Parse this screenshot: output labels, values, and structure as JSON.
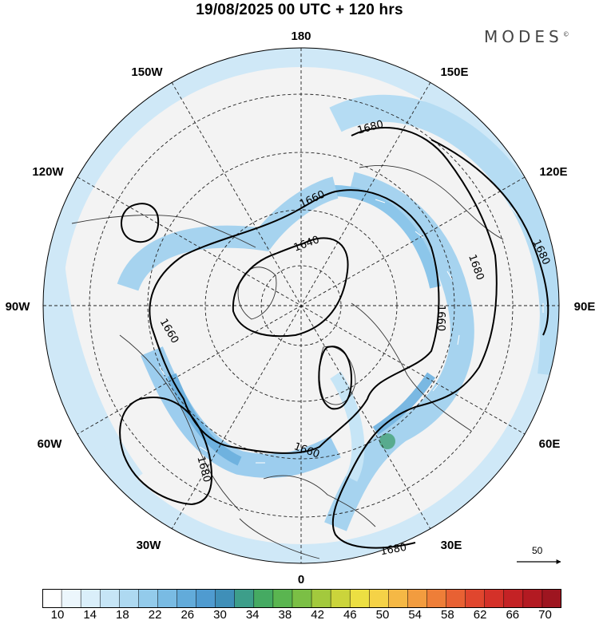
{
  "title": "19/08/2025  00 UTC  + 120 hrs",
  "brand": "MODES",
  "brand_mark": "©",
  "longitude_labels": {
    "n180": "180",
    "w150": "150W",
    "e150": "150E",
    "w120": "120W",
    "e120": "120E",
    "w90": "90W",
    "e90": "90E",
    "w60": "60W",
    "e60": "60E",
    "w30": "30W",
    "e30": "30E",
    "s0": "0"
  },
  "contour_labels": {
    "c1640": "1640",
    "c1660_a": "1660",
    "c1660_b": "1660",
    "c1660_c": "1660",
    "c1660_d": "1660",
    "c1680_a": "1680",
    "c1680_b": "1680",
    "c1680_c": "1680",
    "c1680_d": "1680",
    "c1680_e": "1680"
  },
  "reference_vector": "50",
  "colorbar": {
    "colors": [
      "#ffffff",
      "#ecf6fc",
      "#daeffa",
      "#c6e5f6",
      "#aed9f1",
      "#93cbeb",
      "#79bbe3",
      "#62abda",
      "#4f9bd0",
      "#3f8fb8",
      "#3d9e8a",
      "#45aa62",
      "#5ab550",
      "#7bbf45",
      "#a3c93d",
      "#cbd43b",
      "#ecdf42",
      "#f5d247",
      "#f5b845",
      "#f29c3f",
      "#ee7e38",
      "#e86133",
      "#e0462e",
      "#d43129",
      "#c42225",
      "#b31a22",
      "#9e1520"
    ],
    "tick_labels": [
      "10",
      "14",
      "18",
      "22",
      "26",
      "30",
      "34",
      "38",
      "42",
      "46",
      "50",
      "54",
      "58",
      "62",
      "66",
      "70"
    ]
  }
}
